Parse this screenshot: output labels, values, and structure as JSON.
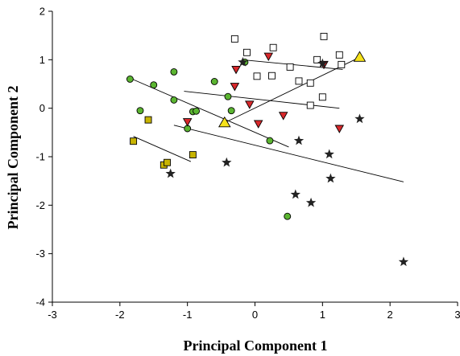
{
  "chart_data": {
    "type": "scatter",
    "xlabel": "Principal Component 1",
    "ylabel": "Principal Component 2",
    "xlim": [
      -3,
      3
    ],
    "ylim": [
      -4,
      2
    ],
    "xticks": [
      -3,
      -2,
      -1,
      0,
      1,
      2,
      3
    ],
    "yticks": [
      -4,
      -3,
      -2,
      -1,
      0,
      1,
      2
    ],
    "grid": false,
    "series": [
      {
        "marker": "circle",
        "color": "#5bb531",
        "points": [
          [
            -1.85,
            0.6
          ],
          [
            -1.7,
            -0.05
          ],
          [
            -1.5,
            0.48
          ],
          [
            -1.2,
            0.75
          ],
          [
            -1.2,
            0.17
          ],
          [
            -1.0,
            -0.42
          ],
          [
            -0.92,
            -0.07
          ],
          [
            -0.87,
            -0.06
          ],
          [
            -0.6,
            0.55
          ],
          [
            -0.4,
            0.24
          ],
          [
            -0.35,
            -0.05
          ],
          [
            -0.15,
            0.95
          ],
          [
            0.22,
            -0.67
          ],
          [
            0.48,
            -2.23
          ]
        ],
        "trend": [
          [
            -1.85,
            0.62
          ],
          [
            0.5,
            -0.8
          ]
        ]
      },
      {
        "marker": "square-open",
        "color": "#ffffff",
        "points": [
          [
            -0.3,
            1.43
          ],
          [
            -0.12,
            1.15
          ],
          [
            0.03,
            0.66
          ],
          [
            0.27,
            1.25
          ],
          [
            0.25,
            0.67
          ],
          [
            0.52,
            0.85
          ],
          [
            0.65,
            0.56
          ],
          [
            0.82,
            0.52
          ],
          [
            0.82,
            0.06
          ],
          [
            0.92,
            1.0
          ],
          [
            1.0,
            0.23
          ],
          [
            1.02,
            1.48
          ],
          [
            1.25,
            1.1
          ],
          [
            1.28,
            0.9
          ]
        ],
        "trend": [
          [
            -0.2,
            1.0
          ],
          [
            1.3,
            0.8
          ]
        ]
      },
      {
        "marker": "triangle-down",
        "color": "#d8282b",
        "points": [
          [
            -1.0,
            -0.28
          ],
          [
            -0.3,
            0.45
          ],
          [
            -0.28,
            0.8
          ],
          [
            -0.08,
            0.08
          ],
          [
            0.05,
            -0.32
          ],
          [
            0.2,
            1.07
          ],
          [
            0.42,
            -0.15
          ],
          [
            1.02,
            0.9
          ],
          [
            1.25,
            -0.42
          ]
        ],
        "trend": [
          [
            -1.05,
            0.35
          ],
          [
            1.25,
            0.0
          ]
        ]
      },
      {
        "marker": "star",
        "color": "#222222",
        "points": [
          [
            -1.25,
            -1.35
          ],
          [
            -0.42,
            -1.12
          ],
          [
            -0.18,
            0.95
          ],
          [
            0.6,
            -1.78
          ],
          [
            0.65,
            -0.67
          ],
          [
            0.83,
            -1.95
          ],
          [
            1.0,
            0.92
          ],
          [
            1.1,
            -0.95
          ],
          [
            1.12,
            -1.45
          ],
          [
            1.55,
            -0.22
          ],
          [
            2.2,
            -3.17
          ]
        ],
        "trend": [
          [
            -1.2,
            -0.35
          ],
          [
            2.2,
            -1.52
          ]
        ]
      },
      {
        "marker": "square",
        "color": "#c8b400",
        "points": [
          [
            -1.8,
            -0.68
          ],
          [
            -1.58,
            -0.24
          ],
          [
            -1.35,
            -1.17
          ],
          [
            -1.3,
            -1.12
          ],
          [
            -0.92,
            -0.96
          ]
        ],
        "trend": [
          [
            -1.8,
            -0.58
          ],
          [
            -0.95,
            -1.1
          ]
        ]
      },
      {
        "marker": "triangle-up",
        "color": "#f6e21a",
        "points": [
          [
            -0.45,
            -0.3
          ],
          [
            1.55,
            1.05
          ]
        ],
        "trend": [
          [
            -0.45,
            -0.3
          ],
          [
            1.55,
            1.05
          ]
        ]
      }
    ]
  }
}
